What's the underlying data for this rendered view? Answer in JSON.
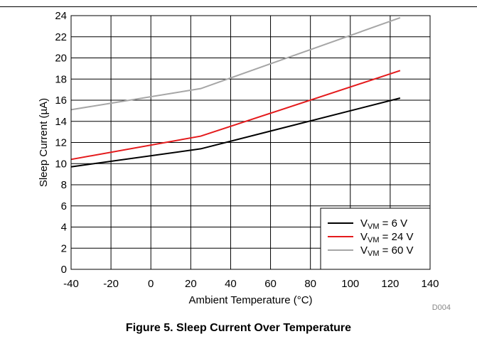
{
  "figure": {
    "caption": "Figure 5. Sleep Current Over Temperature",
    "figure_id": "D004"
  },
  "colors": {
    "axis": "#000000",
    "grid": "#000000",
    "series": [
      "#000000",
      "#e41a1c",
      "#a6a6a6"
    ]
  },
  "chart_data": {
    "type": "line",
    "title": "",
    "xlabel": "Ambient Temperature (°C)",
    "ylabel": "Sleep Current (µA)",
    "xlim": [
      -40,
      140
    ],
    "ylim": [
      0,
      24
    ],
    "xticks": [
      -40,
      -20,
      0,
      20,
      40,
      60,
      80,
      100,
      120,
      140
    ],
    "yticks": [
      0,
      2,
      4,
      6,
      8,
      10,
      12,
      14,
      16,
      18,
      20,
      22,
      24
    ],
    "grid": true,
    "legend_position": "bottom-right",
    "series": [
      {
        "name": "VVM = 6 V",
        "label_main": "V",
        "label_sub": "VM",
        "label_rest": " = 6 V",
        "x": [
          -40,
          25,
          125
        ],
        "y": [
          9.7,
          11.4,
          16.2
        ]
      },
      {
        "name": "VVM = 24 V",
        "label_main": "V",
        "label_sub": "VM",
        "label_rest": " = 24 V",
        "x": [
          -40,
          25,
          125
        ],
        "y": [
          10.4,
          12.6,
          18.8
        ]
      },
      {
        "name": "VVM = 60 V",
        "label_main": "V",
        "label_sub": "VM",
        "label_rest": " = 60 V",
        "x": [
          -40,
          25,
          125
        ],
        "y": [
          15.1,
          17.1,
          23.8
        ]
      }
    ]
  }
}
